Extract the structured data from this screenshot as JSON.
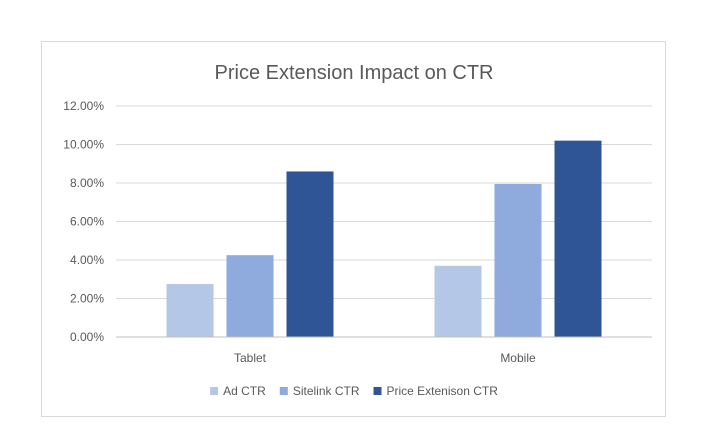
{
  "chart_data": {
    "type": "bar",
    "title": "Price Extension Impact on CTR",
    "xlabel": "",
    "ylabel": "",
    "categories": [
      "Tablet",
      "Mobile"
    ],
    "series": [
      {
        "name": "Ad CTR",
        "values": [
          2.75,
          3.7
        ],
        "color": "#b4c7e7"
      },
      {
        "name": "Sitelink  CTR",
        "values": [
          4.25,
          7.95
        ],
        "color": "#8faadc"
      },
      {
        "name": "Price Extenison CTR",
        "values": [
          8.6,
          10.2
        ],
        "color": "#2f5597"
      }
    ],
    "ylim": [
      0,
      12
    ],
    "yticks": [
      "0.00%",
      "2.00%",
      "4.00%",
      "6.00%",
      "8.00%",
      "10.00%",
      "12.00%"
    ],
    "grid": true,
    "legend": "bottom"
  }
}
